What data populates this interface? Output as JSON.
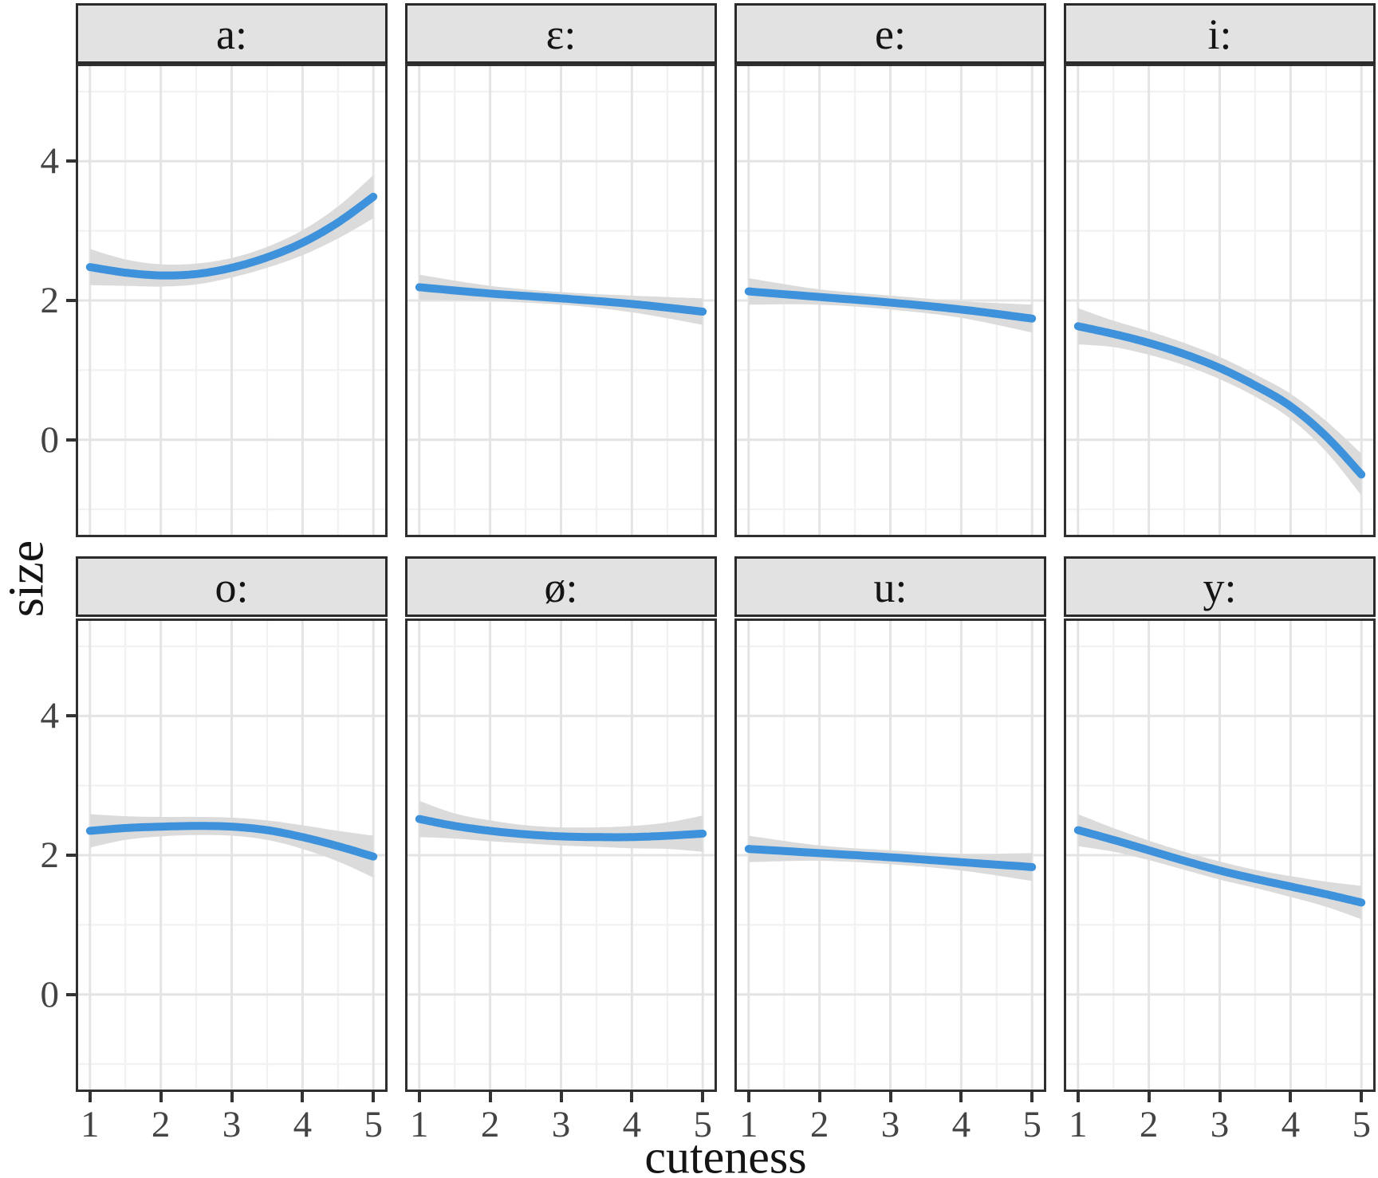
{
  "figure": {
    "x_axis_label": "cuteness",
    "y_axis_label": "size",
    "x_tick_labels": [
      "1",
      "2",
      "3",
      "4",
      "5"
    ],
    "y_tick_labels": [
      "4",
      "2",
      "0"
    ],
    "colors": {
      "smooth_line": "#3D92DB",
      "ci_band": "#DBDBDB",
      "strip_background": "#E2E2E2",
      "strip_border": "#2A2A2A",
      "panel_border": "#2F2F2F",
      "panel_background": "#FFFFFF",
      "grid_major": "#E4E4E4",
      "grid_minor": "#F2F2F2",
      "tick_mark": "#333333",
      "tick_label": "#444444",
      "axis_title": "#141414",
      "strip_text": "#141414"
    }
  },
  "chart_data": {
    "type": "line",
    "title": "",
    "xlabel": "cuteness",
    "ylabel": "size",
    "x_ticks": [
      1,
      2,
      3,
      4,
      5
    ],
    "y_ticks": [
      0,
      2,
      4
    ],
    "x_range_shown": [
      0.8,
      5.2
    ],
    "y_range_shown": [
      -1.4,
      5.4
    ],
    "grid": true,
    "legend_position": "none",
    "facet_labels": [
      "a:",
      "ɛ:",
      "e:",
      "i:",
      "o:",
      "ø:",
      "u:",
      "y:"
    ],
    "facets": [
      {
        "label": "a:",
        "name": "a",
        "x": [
          1,
          1.5,
          2,
          2.5,
          3,
          3.5,
          4,
          4.5,
          5
        ],
        "mean": [
          2.48,
          2.4,
          2.36,
          2.38,
          2.47,
          2.62,
          2.83,
          3.12,
          3.49
        ],
        "ci_halfwidth": [
          0.26,
          0.19,
          0.16,
          0.15,
          0.14,
          0.15,
          0.18,
          0.23,
          0.31
        ]
      },
      {
        "label": "ɛ:",
        "name": "epsilon",
        "x": [
          1,
          2,
          3,
          4,
          5
        ],
        "mean": [
          2.19,
          2.1,
          2.03,
          1.95,
          1.84
        ],
        "ci_halfwidth": [
          0.18,
          0.11,
          0.09,
          0.12,
          0.19
        ]
      },
      {
        "label": "e:",
        "name": "e",
        "x": [
          1,
          2,
          3,
          4,
          5
        ],
        "mean": [
          2.13,
          2.05,
          1.97,
          1.87,
          1.74
        ],
        "ci_halfwidth": [
          0.19,
          0.11,
          0.1,
          0.12,
          0.2
        ]
      },
      {
        "label": "i:",
        "name": "i",
        "x": [
          1,
          1.5,
          2,
          2.5,
          3,
          3.5,
          4,
          4.5,
          5
        ],
        "mean": [
          1.63,
          1.52,
          1.39,
          1.23,
          1.03,
          0.78,
          0.48,
          0.05,
          -0.5
        ],
        "ci_halfwidth": [
          0.26,
          0.19,
          0.17,
          0.16,
          0.16,
          0.16,
          0.18,
          0.22,
          0.3
        ]
      },
      {
        "label": "o:",
        "name": "o",
        "x": [
          1,
          1.5,
          2,
          2.5,
          3,
          3.5,
          4,
          4.5,
          5
        ],
        "mean": [
          2.35,
          2.39,
          2.41,
          2.42,
          2.41,
          2.36,
          2.26,
          2.13,
          1.98
        ],
        "ci_halfwidth": [
          0.24,
          0.17,
          0.14,
          0.13,
          0.13,
          0.14,
          0.17,
          0.22,
          0.3
        ]
      },
      {
        "label": "ø:",
        "name": "oslash",
        "x": [
          1,
          1.5,
          2,
          2.5,
          3,
          3.5,
          4,
          4.5,
          5
        ],
        "mean": [
          2.52,
          2.42,
          2.35,
          2.3,
          2.27,
          2.26,
          2.26,
          2.28,
          2.31
        ],
        "ci_halfwidth": [
          0.26,
          0.18,
          0.15,
          0.13,
          0.13,
          0.14,
          0.16,
          0.19,
          0.26
        ]
      },
      {
        "label": "u:",
        "name": "u",
        "x": [
          1,
          2,
          3,
          4,
          5
        ],
        "mean": [
          2.09,
          2.03,
          1.97,
          1.9,
          1.83
        ],
        "ci_halfwidth": [
          0.19,
          0.11,
          0.1,
          0.12,
          0.2
        ]
      },
      {
        "label": "y:",
        "name": "y",
        "x": [
          1,
          1.5,
          2,
          2.5,
          3,
          3.5,
          4,
          4.5,
          5
        ],
        "mean": [
          2.36,
          2.22,
          2.07,
          1.92,
          1.78,
          1.66,
          1.55,
          1.44,
          1.32
        ],
        "ci_halfwidth": [
          0.23,
          0.17,
          0.14,
          0.13,
          0.13,
          0.13,
          0.15,
          0.18,
          0.24
        ]
      }
    ]
  }
}
